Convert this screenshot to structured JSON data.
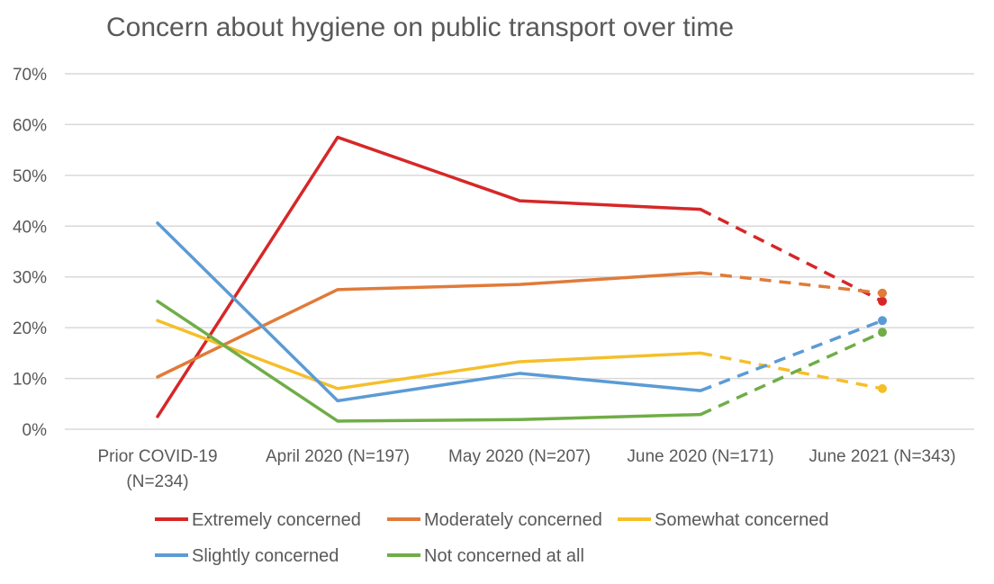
{
  "chart_data": {
    "type": "line",
    "title": "Concern about hygiene on public transport over  time",
    "categories": [
      [
        "Prior COVID-19",
        "(N=234)"
      ],
      [
        "April 2020 (N=197)"
      ],
      [
        "May 2020 (N=207)"
      ],
      [
        "June 2020 (N=171)"
      ],
      [
        "June 2021 (N=343)"
      ]
    ],
    "ylim": [
      0,
      70
    ],
    "yticks": [
      0,
      10,
      20,
      30,
      40,
      50,
      60,
      70
    ],
    "ytick_labels": [
      "0%",
      "10%",
      "20%",
      "30%",
      "40%",
      "50%",
      "60%",
      "70%"
    ],
    "grid": true,
    "legend_position": "bottom",
    "dashed_last_segment": true,
    "series": [
      {
        "name": "Extremely concerned",
        "color": "#d62728",
        "values": [
          2.5,
          57.5,
          45,
          43.3,
          25.2
        ]
      },
      {
        "name": "Moderately concerned",
        "color": "#e07b39",
        "values": [
          10.3,
          27.5,
          28.5,
          30.8,
          26.8
        ]
      },
      {
        "name": "Somewhat concerned",
        "color": "#f5bf2a",
        "values": [
          21.4,
          8.0,
          13.3,
          15.0,
          8.0
        ]
      },
      {
        "name": "Slightly concerned",
        "color": "#5b9bd5",
        "values": [
          40.6,
          5.6,
          11.0,
          7.6,
          21.4
        ]
      },
      {
        "name": "Not concerned at all",
        "color": "#70ad47",
        "values": [
          25.2,
          1.6,
          1.9,
          2.9,
          19.1
        ]
      }
    ]
  }
}
